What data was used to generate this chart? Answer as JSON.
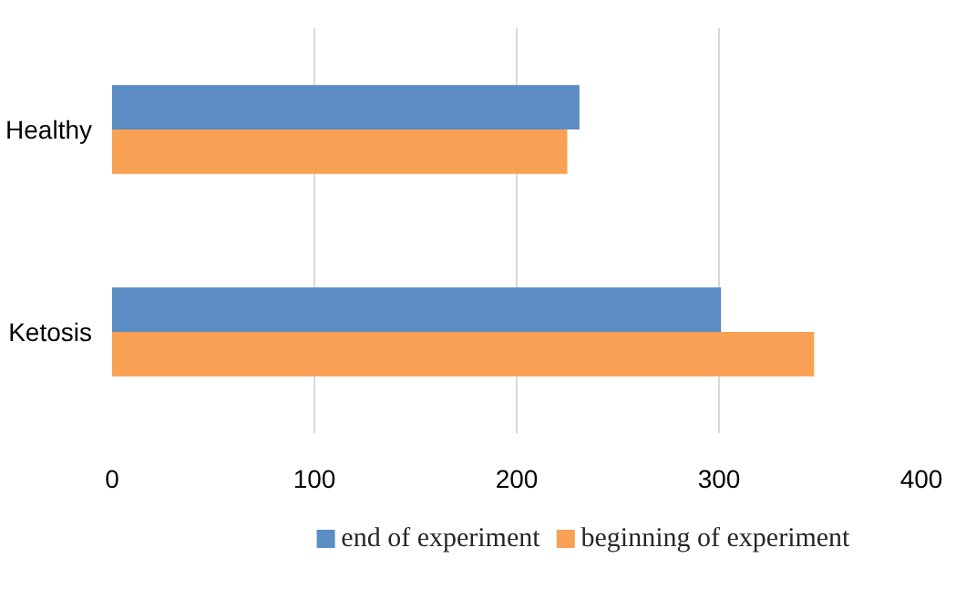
{
  "chart_data": {
    "type": "bar",
    "orientation": "horizontal",
    "categories": [
      "Healthy",
      "Ketosis"
    ],
    "series": [
      {
        "name": "end of experiment",
        "color": "#5b8cc4",
        "values": [
          231,
          301
        ]
      },
      {
        "name": "beginning of experiment",
        "color": "#f8a053",
        "values": [
          225,
          347
        ]
      }
    ],
    "xlim": [
      0,
      400
    ],
    "xticks": [
      0,
      100,
      200,
      300,
      400
    ],
    "grid": "x",
    "legend": "bottom"
  }
}
